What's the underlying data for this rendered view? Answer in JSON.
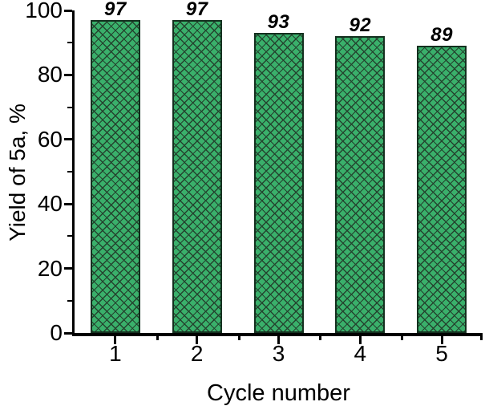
{
  "chart_data": {
    "type": "bar",
    "title": "",
    "categories": [
      "1",
      "2",
      "3",
      "4",
      "5"
    ],
    "values": [
      97,
      97,
      93,
      92,
      89
    ],
    "bar_labels": [
      "97",
      "97",
      "93",
      "92",
      "89"
    ],
    "xlabel": "Cycle number",
    "ylabel": "Yield of 5a, %",
    "ylim": [
      0,
      100
    ],
    "y_major_ticks": [
      0,
      20,
      40,
      60,
      80,
      100
    ],
    "y_minor_ticks": [
      10,
      30,
      50,
      70,
      90
    ],
    "grid": false,
    "legend_position": "none",
    "bar_style": "crosshatch"
  },
  "colors": {
    "background": "#ffffff",
    "bar_fill": "#3ab06b",
    "bar_hatch": "#24442f",
    "bar_border": "#14301f",
    "axis": "#000000",
    "text": "#000000"
  }
}
